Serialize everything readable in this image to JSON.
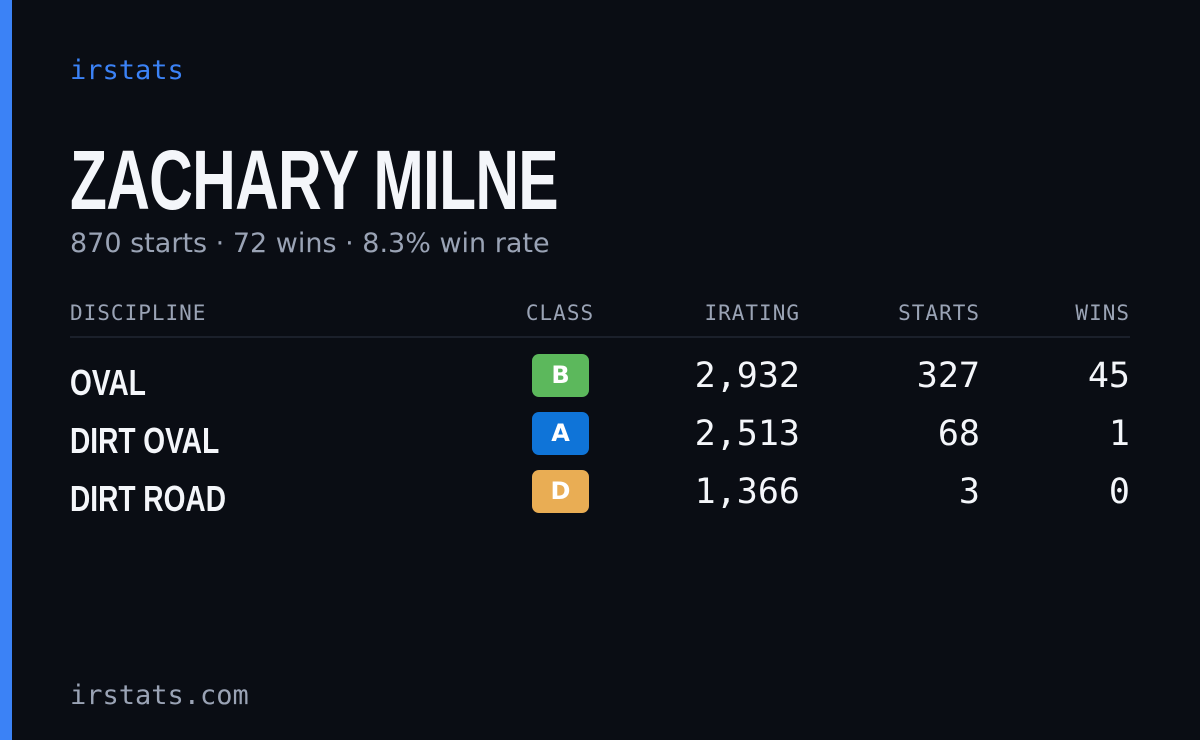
{
  "brand": "irstats",
  "profile": {
    "name": "ZACHARY MILNE",
    "summary": "870 starts · 72 wins · 8.3% win rate"
  },
  "table": {
    "headers": [
      "DISCIPLINE",
      "CLASS",
      "IRATING",
      "STARTS",
      "WINS"
    ],
    "rows": [
      [
        "OVAL",
        "B",
        "2,932",
        "327",
        "45"
      ],
      [
        "DIRT OVAL",
        "A",
        "2,513",
        "68",
        "1"
      ],
      [
        "DIRT ROAD",
        "D",
        "1,366",
        "3",
        "0"
      ]
    ],
    "class_colors": {
      "B": "#5cb85c",
      "A": "#0f74d8",
      "D": "#e9ad54"
    }
  },
  "footer": "irstats.com"
}
